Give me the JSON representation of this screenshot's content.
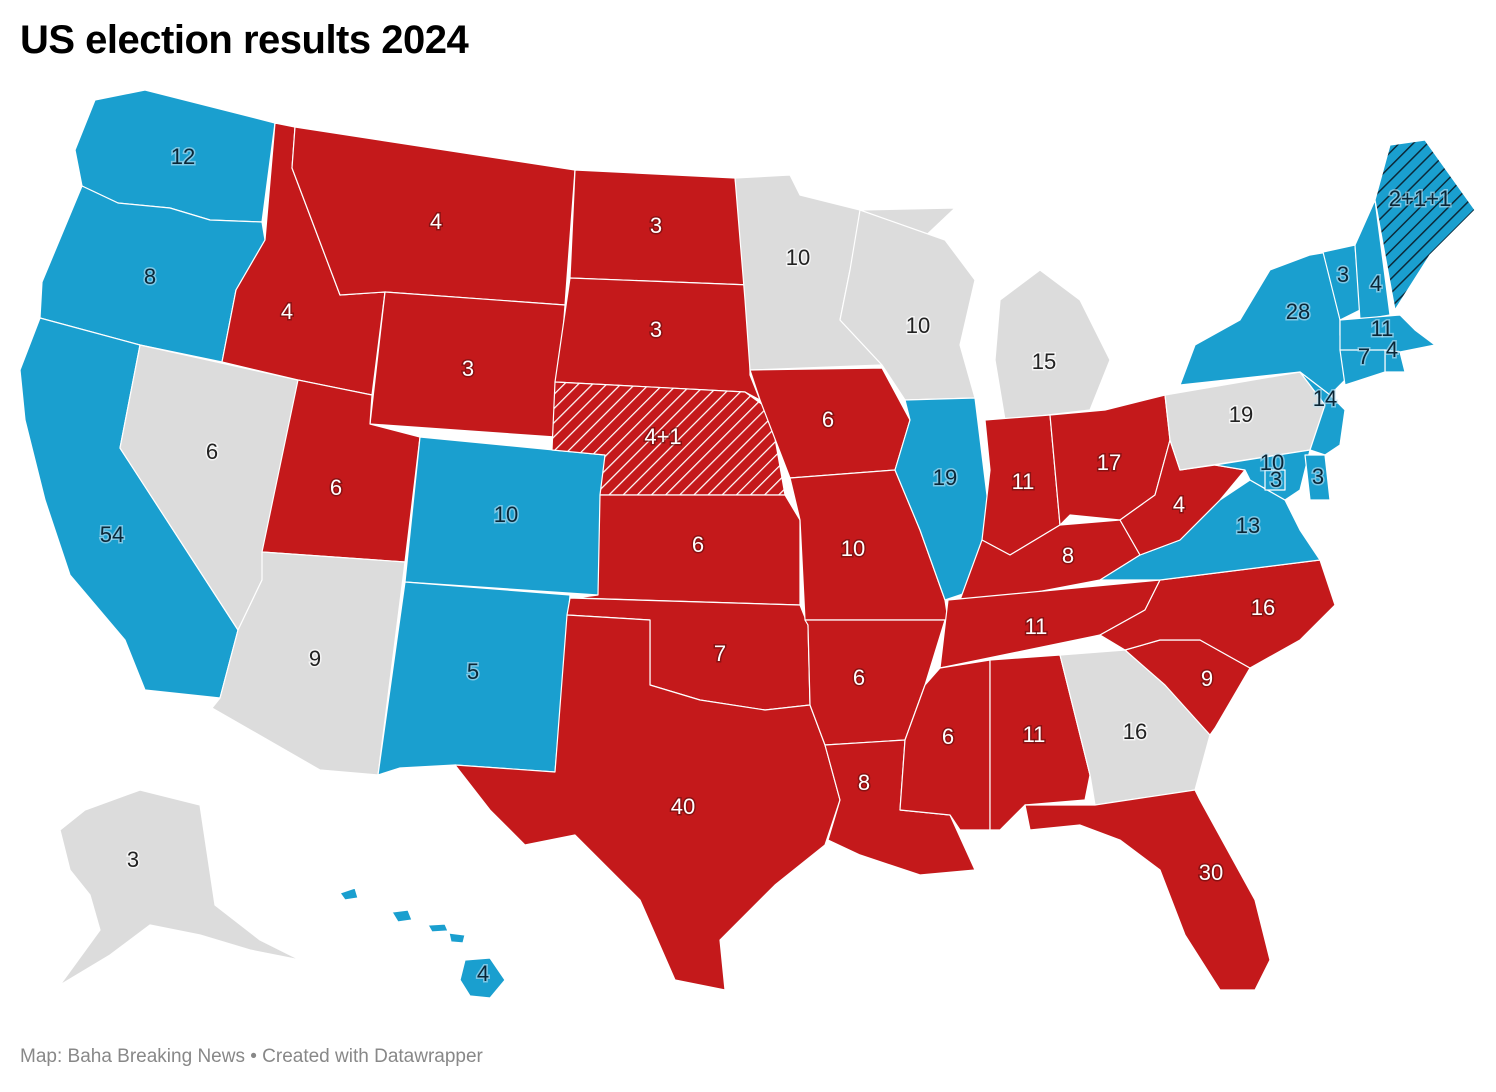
{
  "title": "US election results 2024",
  "footer": "Map: Baha Breaking News • Created with Datawrapper",
  "colors": {
    "republican": "#c4191b",
    "democrat": "#1a9fcf",
    "undecided": "#dcdcdc",
    "border": "#ffffff"
  },
  "states": [
    {
      "name": "Washington",
      "ev": "12",
      "party": "democrat"
    },
    {
      "name": "Oregon",
      "ev": "8",
      "party": "democrat"
    },
    {
      "name": "California",
      "ev": "54",
      "party": "democrat"
    },
    {
      "name": "Nevada",
      "ev": "6",
      "party": "undecided"
    },
    {
      "name": "Idaho",
      "ev": "4",
      "party": "republican"
    },
    {
      "name": "Montana",
      "ev": "4",
      "party": "republican"
    },
    {
      "name": "Wyoming",
      "ev": "3",
      "party": "republican"
    },
    {
      "name": "Utah",
      "ev": "6",
      "party": "republican"
    },
    {
      "name": "Arizona",
      "ev": "9",
      "party": "undecided"
    },
    {
      "name": "Colorado",
      "ev": "10",
      "party": "democrat"
    },
    {
      "name": "New Mexico",
      "ev": "5",
      "party": "democrat"
    },
    {
      "name": "North Dakota",
      "ev": "3",
      "party": "republican"
    },
    {
      "name": "South Dakota",
      "ev": "3",
      "party": "republican"
    },
    {
      "name": "Nebraska",
      "ev": "4+1",
      "party": "republican",
      "pattern": "hatched"
    },
    {
      "name": "Kansas",
      "ev": "6",
      "party": "republican"
    },
    {
      "name": "Oklahoma",
      "ev": "7",
      "party": "republican"
    },
    {
      "name": "Texas",
      "ev": "40",
      "party": "republican"
    },
    {
      "name": "Minnesota",
      "ev": "10",
      "party": "undecided"
    },
    {
      "name": "Iowa",
      "ev": "6",
      "party": "republican"
    },
    {
      "name": "Missouri",
      "ev": "10",
      "party": "republican"
    },
    {
      "name": "Arkansas",
      "ev": "6",
      "party": "republican"
    },
    {
      "name": "Louisiana",
      "ev": "8",
      "party": "republican"
    },
    {
      "name": "Wisconsin",
      "ev": "10",
      "party": "undecided"
    },
    {
      "name": "Illinois",
      "ev": "19",
      "party": "democrat"
    },
    {
      "name": "Michigan",
      "ev": "15",
      "party": "undecided"
    },
    {
      "name": "Indiana",
      "ev": "11",
      "party": "republican"
    },
    {
      "name": "Ohio",
      "ev": "17",
      "party": "republican"
    },
    {
      "name": "Kentucky",
      "ev": "8",
      "party": "republican"
    },
    {
      "name": "Tennessee",
      "ev": "11",
      "party": "republican"
    },
    {
      "name": "Mississippi",
      "ev": "6",
      "party": "republican"
    },
    {
      "name": "Alabama",
      "ev": "11",
      "party": "republican"
    },
    {
      "name": "Georgia",
      "ev": "16",
      "party": "undecided"
    },
    {
      "name": "Florida",
      "ev": "30",
      "party": "republican"
    },
    {
      "name": "South Carolina",
      "ev": "9",
      "party": "republican"
    },
    {
      "name": "North Carolina",
      "ev": "16",
      "party": "republican"
    },
    {
      "name": "Virginia",
      "ev": "13",
      "party": "democrat"
    },
    {
      "name": "West Virginia",
      "ev": "4",
      "party": "republican"
    },
    {
      "name": "Pennsylvania",
      "ev": "19",
      "party": "undecided"
    },
    {
      "name": "New York",
      "ev": "28",
      "party": "democrat"
    },
    {
      "name": "Vermont",
      "ev": "3",
      "party": "democrat"
    },
    {
      "name": "New Hampshire",
      "ev": "4",
      "party": "democrat"
    },
    {
      "name": "Maine",
      "ev": "2+1+1",
      "party": "democrat",
      "pattern": "hatched"
    },
    {
      "name": "Massachusetts",
      "ev": "11",
      "party": "democrat"
    },
    {
      "name": "Rhode Island",
      "ev": "4",
      "party": "democrat"
    },
    {
      "name": "Connecticut",
      "ev": "7",
      "party": "democrat"
    },
    {
      "name": "New Jersey",
      "ev": "14",
      "party": "democrat"
    },
    {
      "name": "Maryland",
      "ev": "10",
      "party": "democrat"
    },
    {
      "name": "Delaware",
      "ev": "3",
      "party": "democrat"
    },
    {
      "name": "District of Columbia",
      "ev": "3",
      "party": "democrat"
    },
    {
      "name": "Alaska",
      "ev": "3",
      "party": "undecided"
    },
    {
      "name": "Hawaii",
      "ev": "4",
      "party": "democrat"
    }
  ]
}
